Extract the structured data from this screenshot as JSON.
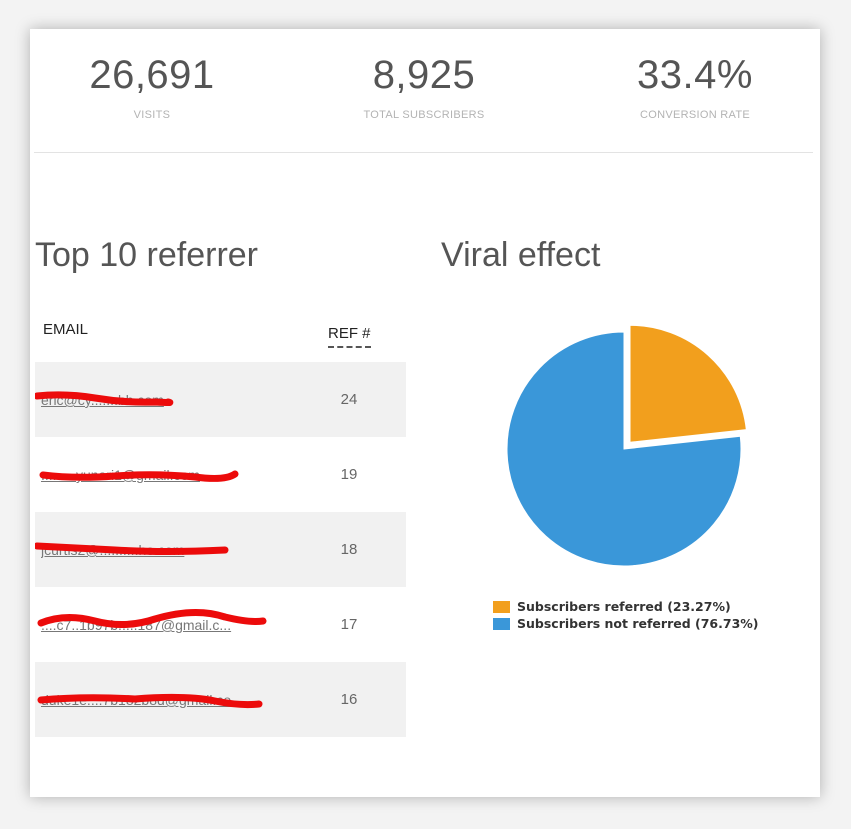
{
  "stats": [
    {
      "value": "26,691",
      "label": "VISITS"
    },
    {
      "value": "8,925",
      "label": "TOTAL SUBSCRIBERS"
    },
    {
      "value": "33.4%",
      "label": "CONVERSION RATE"
    }
  ],
  "referrers": {
    "title": "Top 10 referrer",
    "col_email": "EMAIL",
    "col_ref": "REF #",
    "rows": [
      {
        "email": "eric@cy.......bb.com",
        "refs": "24"
      },
      {
        "email": ".........yunari1@gmail.com",
        "refs": "19"
      },
      {
        "email": "jcurtis2@..........ho.com",
        "refs": "18"
      },
      {
        "email": "....c7..1b97b.....187@gmail.c...",
        "refs": "17"
      },
      {
        "email": "duke1e....7b182b8d@gmail.co...",
        "refs": "16"
      }
    ]
  },
  "viral": {
    "title": "Viral effect",
    "legend": [
      {
        "label": "Subscribers referred (23.27%)",
        "color": "#f29f1d"
      },
      {
        "label": "Subscribers not referred (76.73%)",
        "color": "#3a97d9"
      }
    ]
  },
  "chart_data": {
    "type": "pie",
    "title": "",
    "series": [
      {
        "name": "Subscribers referred",
        "value": 23.27,
        "color": "#f29f1d"
      },
      {
        "name": "Subscribers not referred",
        "value": 76.73,
        "color": "#3a97d9"
      }
    ]
  }
}
